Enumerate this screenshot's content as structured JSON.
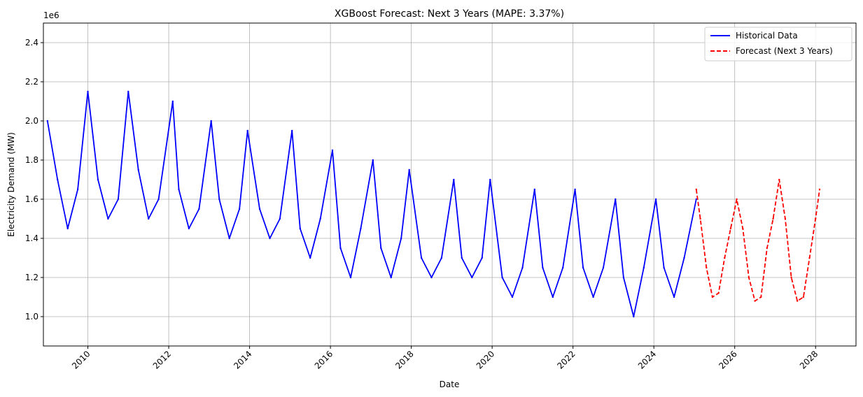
{
  "chart_data": {
    "type": "line",
    "title": "XGBoost Forecast: Next 3 Years (MAPE: 3.37%)",
    "xlabel": "Date",
    "ylabel": "Electricity Demand (MW)",
    "y_offset_label": "1e6",
    "xlim": [
      2008.9,
      2029.0
    ],
    "ylim": [
      0.85,
      2.5
    ],
    "x_ticks": [
      2010,
      2012,
      2014,
      2016,
      2018,
      2020,
      2022,
      2024,
      2026,
      2028
    ],
    "x_tick_labels": [
      "2010",
      "2012",
      "2014",
      "2016",
      "2018",
      "2020",
      "2022",
      "2024",
      "2026",
      "2028"
    ],
    "y_ticks": [
      1.0,
      1.2,
      1.4,
      1.6,
      1.8,
      2.0,
      2.2,
      2.4
    ],
    "y_tick_labels": [
      "1.0",
      "1.2",
      "1.4",
      "1.6",
      "1.8",
      "2.0",
      "2.2",
      "2.4"
    ],
    "grid": true,
    "legend_position": "top-right",
    "series": [
      {
        "name": "Historical Data",
        "color": "#0000ff",
        "style": "solid",
        "x": [
          2009.0,
          2009.25,
          2009.5,
          2009.75,
          2010.0,
          2010.25,
          2010.5,
          2010.75,
          2011.0,
          2011.25,
          2011.5,
          2011.75,
          2012.1,
          2012.25,
          2012.5,
          2012.75,
          2013.05,
          2013.25,
          2013.5,
          2013.75,
          2013.95,
          2014.25,
          2014.5,
          2014.75,
          2015.05,
          2015.25,
          2015.5,
          2015.75,
          2016.05,
          2016.25,
          2016.5,
          2016.75,
          2017.05,
          2017.25,
          2017.5,
          2017.75,
          2017.95,
          2018.25,
          2018.5,
          2018.75,
          2019.05,
          2019.25,
          2019.5,
          2019.75,
          2019.95,
          2020.25,
          2020.5,
          2020.75,
          2021.05,
          2021.25,
          2021.5,
          2021.75,
          2022.05,
          2022.25,
          2022.5,
          2022.75,
          2023.05,
          2023.25,
          2023.5,
          2023.75,
          2024.05,
          2024.25,
          2024.5,
          2024.75,
          2025.05
        ],
        "y": [
          2.0,
          1.7,
          1.45,
          1.65,
          2.15,
          1.7,
          1.5,
          1.6,
          2.15,
          1.75,
          1.5,
          1.6,
          2.1,
          1.65,
          1.45,
          1.55,
          2.0,
          1.6,
          1.4,
          1.55,
          1.95,
          1.55,
          1.4,
          1.5,
          1.95,
          1.45,
          1.3,
          1.5,
          1.85,
          1.35,
          1.2,
          1.45,
          1.8,
          1.35,
          1.2,
          1.4,
          1.75,
          1.3,
          1.2,
          1.3,
          1.7,
          1.3,
          1.2,
          1.3,
          1.7,
          1.2,
          1.1,
          1.25,
          1.65,
          1.25,
          1.1,
          1.25,
          1.65,
          1.25,
          1.1,
          1.25,
          1.6,
          1.2,
          1.0,
          1.25,
          1.6,
          1.25,
          1.1,
          1.3,
          1.6
        ]
      },
      {
        "name": "Forecast (Next 3 Years)",
        "color": "#ff0000",
        "style": "dashed",
        "x": [
          2025.05,
          2025.15,
          2025.3,
          2025.45,
          2025.6,
          2025.75,
          2025.9,
          2026.05,
          2026.2,
          2026.35,
          2026.5,
          2026.65,
          2026.8,
          2026.95,
          2027.1,
          2027.25,
          2027.4,
          2027.55,
          2027.7,
          2027.85,
          2028.0,
          2028.1
        ],
        "y": [
          1.65,
          1.5,
          1.25,
          1.1,
          1.12,
          1.3,
          1.45,
          1.6,
          1.45,
          1.2,
          1.08,
          1.1,
          1.35,
          1.5,
          1.7,
          1.5,
          1.2,
          1.08,
          1.1,
          1.3,
          1.5,
          1.65
        ]
      }
    ]
  }
}
